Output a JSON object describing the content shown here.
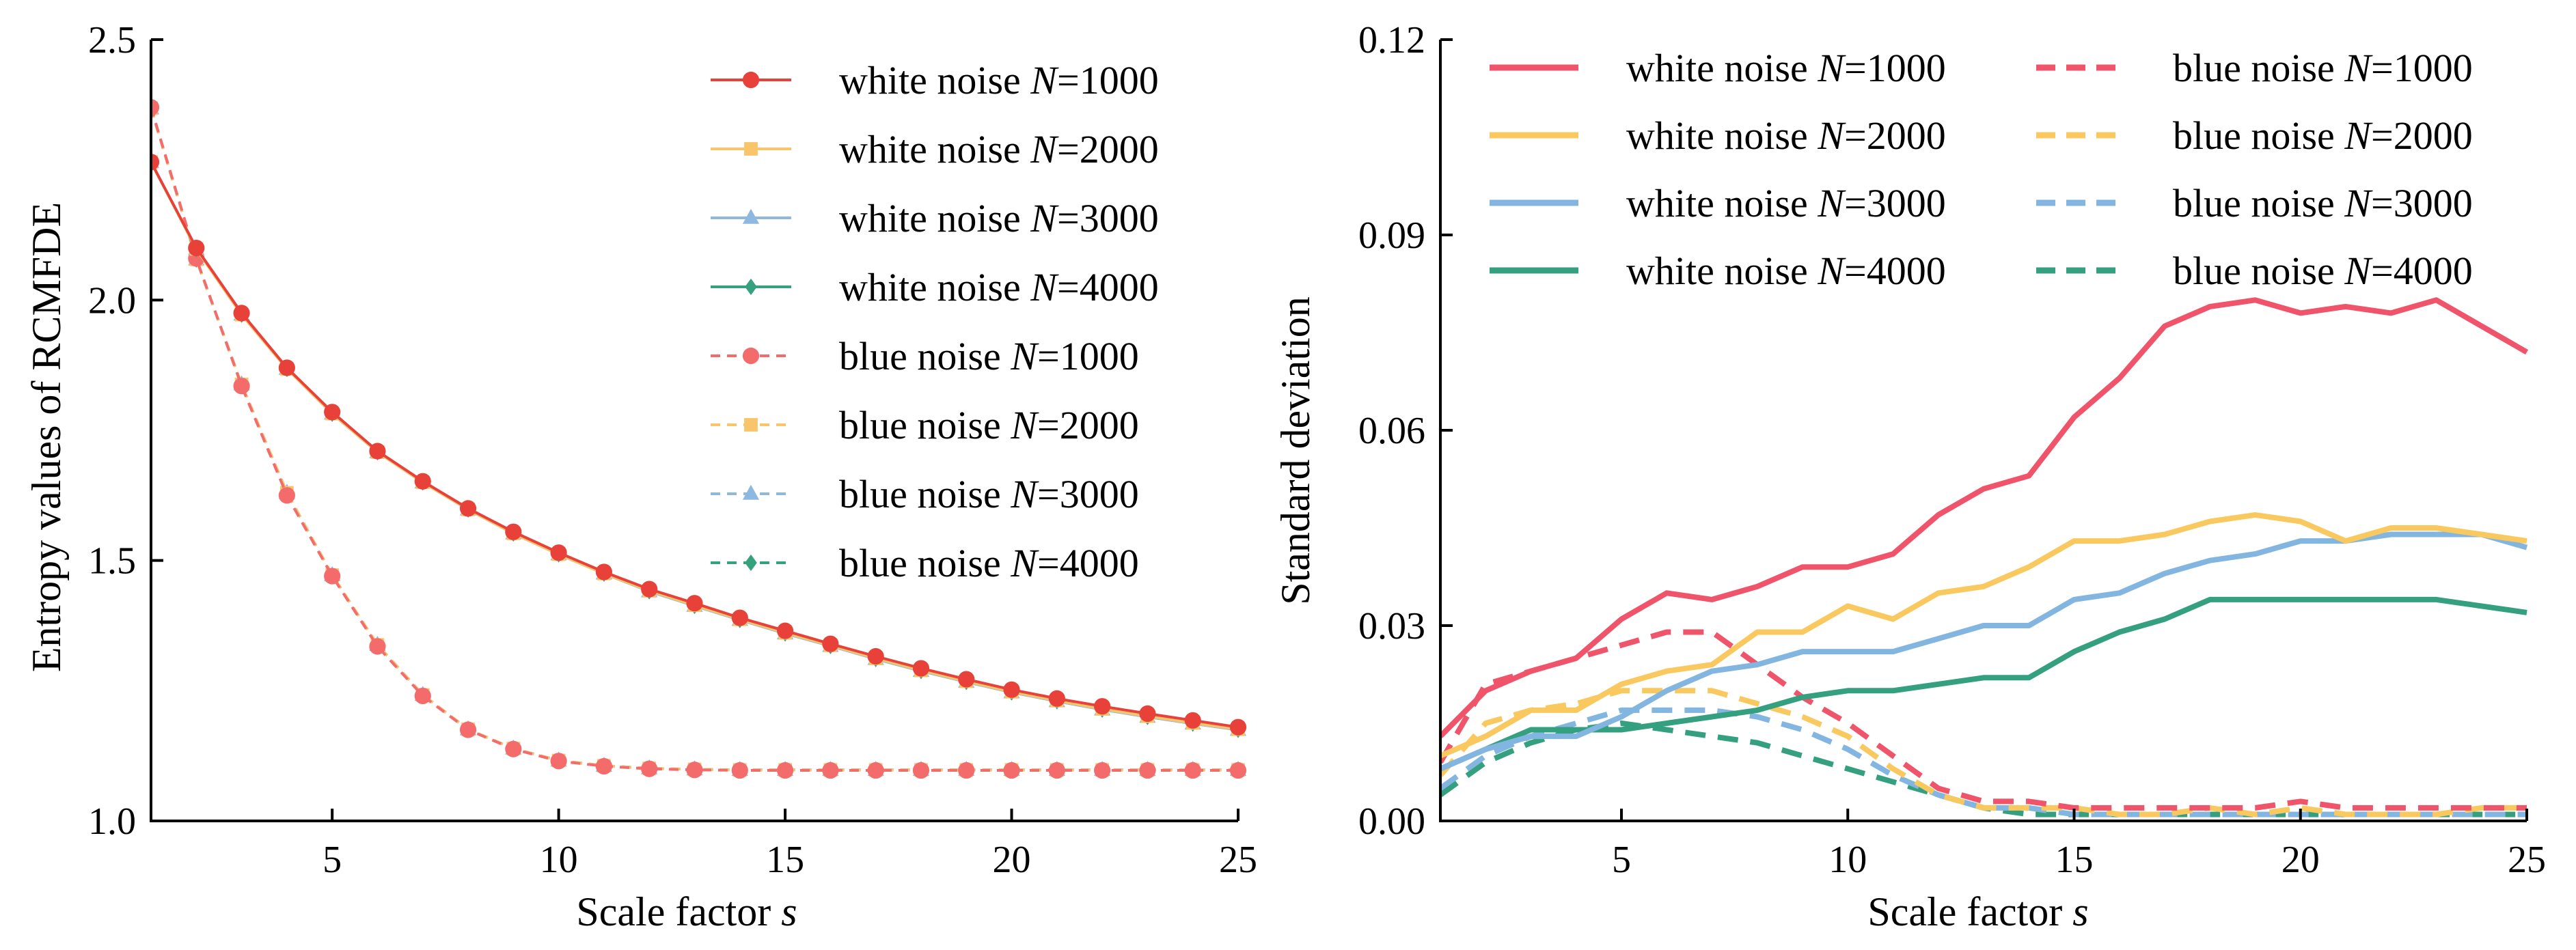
{
  "chart_data": [
    {
      "type": "line",
      "title": "",
      "xlabel": "Scale factor s",
      "xlabel_main": "Scale factor ",
      "xlabel_italic": "s",
      "ylabel": "Entropy values of RCMFDE",
      "xlim": [
        1,
        25
      ],
      "ylim": [
        1.0,
        2.5
      ],
      "xticks": [
        5,
        10,
        15,
        20,
        25
      ],
      "xtick_labels": [
        "5",
        "10",
        "15",
        "20",
        "25"
      ],
      "yticks": [
        1.0,
        1.5,
        2.0,
        2.5
      ],
      "ytick_labels": [
        "1.0",
        "1.5",
        "2.0",
        "2.5"
      ],
      "grid": false,
      "legend_position": "top-right",
      "x": [
        1,
        2,
        3,
        4,
        5,
        6,
        7,
        8,
        9,
        10,
        11,
        12,
        13,
        14,
        15,
        16,
        17,
        18,
        19,
        20,
        21,
        22,
        23,
        24,
        25
      ],
      "series": [
        {
          "name": "white noise N=1000",
          "label_prefix": "white noise ",
          "label_var": "N",
          "label_value": "=1000",
          "color": "#E8413A",
          "linestyle": "solid",
          "marker": "circle",
          "values": [
            2.265,
            2.1,
            1.975,
            1.87,
            1.785,
            1.71,
            1.652,
            1.6,
            1.555,
            1.515,
            1.478,
            1.445,
            1.418,
            1.39,
            1.365,
            1.34,
            1.316,
            1.293,
            1.272,
            1.252,
            1.235,
            1.22,
            1.206,
            1.193,
            1.18
          ]
        },
        {
          "name": "white noise N=2000",
          "label_prefix": "white noise ",
          "label_var": "N",
          "label_value": "=2000",
          "color": "#F9C56A",
          "linestyle": "solid",
          "marker": "square",
          "values": [
            2.265,
            2.098,
            1.972,
            1.868,
            1.782,
            1.708,
            1.65,
            1.598,
            1.552,
            1.512,
            1.475,
            1.442,
            1.414,
            1.387,
            1.361,
            1.337,
            1.312,
            1.289,
            1.268,
            1.248,
            1.231,
            1.215,
            1.201,
            1.188,
            1.176
          ]
        },
        {
          "name": "white noise N=3000",
          "label_prefix": "white noise ",
          "label_var": "N",
          "label_value": "=3000",
          "color": "#8DB8E0",
          "linestyle": "solid",
          "marker": "triangle",
          "values": [
            2.265,
            2.098,
            1.972,
            1.868,
            1.782,
            1.708,
            1.65,
            1.598,
            1.552,
            1.512,
            1.475,
            1.441,
            1.413,
            1.386,
            1.36,
            1.336,
            1.311,
            1.288,
            1.267,
            1.247,
            1.23,
            1.214,
            1.2,
            1.187,
            1.175
          ]
        },
        {
          "name": "white noise N=4000",
          "label_prefix": "white noise ",
          "label_var": "N",
          "label_value": "=4000",
          "color": "#35A27D",
          "linestyle": "solid",
          "marker": "diamond",
          "values": [
            2.265,
            2.098,
            1.972,
            1.868,
            1.782,
            1.708,
            1.65,
            1.598,
            1.552,
            1.512,
            1.475,
            1.441,
            1.413,
            1.386,
            1.36,
            1.336,
            1.311,
            1.288,
            1.267,
            1.247,
            1.23,
            1.214,
            1.2,
            1.187,
            1.175
          ]
        },
        {
          "name": "blue noise N=1000",
          "label_prefix": "blue noise ",
          "label_var": "N",
          "label_value": "=1000",
          "color": "#F46B6B",
          "linestyle": "dashed",
          "marker": "circle",
          "values": [
            2.37,
            2.08,
            1.835,
            1.625,
            1.47,
            1.335,
            1.24,
            1.175,
            1.138,
            1.115,
            1.105,
            1.1,
            1.098,
            1.097,
            1.097,
            1.097,
            1.097,
            1.097,
            1.097,
            1.097,
            1.097,
            1.097,
            1.097,
            1.097,
            1.097
          ]
        },
        {
          "name": "blue noise N=2000",
          "label_prefix": "blue noise ",
          "label_var": "N",
          "label_value": "=2000",
          "color": "#F9C56A",
          "linestyle": "dashed",
          "marker": "square",
          "values": [
            2.368,
            2.078,
            1.838,
            1.63,
            1.472,
            1.338,
            1.242,
            1.176,
            1.139,
            1.116,
            1.106,
            1.101,
            1.099,
            1.098,
            1.098,
            1.098,
            1.098,
            1.098,
            1.098,
            1.098,
            1.098,
            1.098,
            1.098,
            1.098,
            1.098
          ]
        },
        {
          "name": "blue noise N=3000",
          "label_prefix": "blue noise ",
          "label_var": "N",
          "label_value": "=3000",
          "color": "#8DB8E0",
          "linestyle": "dashed",
          "marker": "triangle",
          "values": [
            2.368,
            2.078,
            1.838,
            1.63,
            1.472,
            1.338,
            1.242,
            1.176,
            1.139,
            1.116,
            1.106,
            1.101,
            1.099,
            1.098,
            1.098,
            1.098,
            1.098,
            1.098,
            1.098,
            1.098,
            1.098,
            1.098,
            1.098,
            1.098,
            1.098
          ]
        },
        {
          "name": "blue noise N=4000",
          "label_prefix": "blue noise ",
          "label_var": "N",
          "label_value": "=4000",
          "color": "#35A27D",
          "linestyle": "dashed",
          "marker": "diamond",
          "values": [
            2.368,
            2.078,
            1.838,
            1.63,
            1.472,
            1.338,
            1.242,
            1.176,
            1.139,
            1.116,
            1.106,
            1.101,
            1.099,
            1.098,
            1.098,
            1.098,
            1.098,
            1.098,
            1.098,
            1.098,
            1.098,
            1.098,
            1.098,
            1.098,
            1.098
          ]
        }
      ]
    },
    {
      "type": "line",
      "title": "",
      "xlabel": "Scale factor s",
      "xlabel_main": "Scale factor ",
      "xlabel_italic": "s",
      "ylabel": "Standard deviation",
      "xlim": [
        1,
        25
      ],
      "ylim": [
        0.0,
        0.12
      ],
      "xticks": [
        5,
        10,
        15,
        20,
        25
      ],
      "xtick_labels": [
        "5",
        "10",
        "15",
        "20",
        "25"
      ],
      "yticks": [
        0.0,
        0.03,
        0.06,
        0.09,
        0.12
      ],
      "ytick_labels": [
        "0.00",
        "0.03",
        "0.06",
        "0.09",
        "0.12"
      ],
      "grid": false,
      "legend_position": "top",
      "x": [
        1,
        2,
        3,
        4,
        5,
        6,
        7,
        8,
        9,
        10,
        11,
        12,
        13,
        14,
        15,
        16,
        17,
        18,
        19,
        20,
        21,
        22,
        23,
        24,
        25
      ],
      "series": [
        {
          "name": "white noise N=1000",
          "label_prefix": "white noise ",
          "label_var": "N",
          "label_value": "=1000",
          "color": "#F0546A",
          "linestyle": "solid",
          "values": [
            0.013,
            0.02,
            0.023,
            0.025,
            0.031,
            0.035,
            0.034,
            0.036,
            0.039,
            0.039,
            0.041,
            0.047,
            0.051,
            0.053,
            0.062,
            0.068,
            0.076,
            0.079,
            0.08,
            0.078,
            0.079,
            0.078,
            0.08,
            0.076,
            0.072
          ]
        },
        {
          "name": "white noise N=2000",
          "label_prefix": "white noise ",
          "label_var": "N",
          "label_value": "=2000",
          "color": "#F9C95F",
          "linestyle": "solid",
          "values": [
            0.01,
            0.013,
            0.017,
            0.017,
            0.021,
            0.023,
            0.024,
            0.029,
            0.029,
            0.033,
            0.031,
            0.035,
            0.036,
            0.039,
            0.043,
            0.043,
            0.044,
            0.046,
            0.047,
            0.046,
            0.043,
            0.045,
            0.045,
            0.044,
            0.043
          ]
        },
        {
          "name": "white noise N=3000",
          "label_prefix": "white noise ",
          "label_var": "N",
          "label_value": "=3000",
          "color": "#82B6E0",
          "linestyle": "solid",
          "values": [
            0.008,
            0.011,
            0.013,
            0.013,
            0.016,
            0.02,
            0.023,
            0.024,
            0.026,
            0.026,
            0.026,
            0.028,
            0.03,
            0.03,
            0.034,
            0.035,
            0.038,
            0.04,
            0.041,
            0.043,
            0.043,
            0.044,
            0.044,
            0.044,
            0.042
          ]
        },
        {
          "name": "white noise N=4000",
          "label_prefix": "white noise ",
          "label_var": "N",
          "label_value": "=4000",
          "color": "#34A07F",
          "linestyle": "solid",
          "values": [
            0.008,
            0.011,
            0.014,
            0.014,
            0.014,
            0.015,
            0.016,
            0.017,
            0.019,
            0.02,
            0.02,
            0.021,
            0.022,
            0.022,
            0.026,
            0.029,
            0.031,
            0.034,
            0.034,
            0.034,
            0.034,
            0.034,
            0.034,
            0.033,
            0.032
          ]
        },
        {
          "name": "blue noise N=1000",
          "label_prefix": "blue noise ",
          "label_var": "N",
          "label_value": "=1000",
          "color": "#F0546A",
          "linestyle": "dashed",
          "values": [
            0.009,
            0.021,
            0.023,
            0.025,
            0.027,
            0.029,
            0.029,
            0.024,
            0.019,
            0.015,
            0.01,
            0.005,
            0.003,
            0.003,
            0.002,
            0.002,
            0.002,
            0.002,
            0.002,
            0.003,
            0.002,
            0.002,
            0.002,
            0.002,
            0.002
          ]
        },
        {
          "name": "blue noise N=2000",
          "label_prefix": "blue noise ",
          "label_var": "N",
          "label_value": "=2000",
          "color": "#F9C95F",
          "linestyle": "dashed",
          "values": [
            0.007,
            0.015,
            0.017,
            0.018,
            0.02,
            0.02,
            0.02,
            0.018,
            0.016,
            0.013,
            0.008,
            0.004,
            0.002,
            0.002,
            0.002,
            0.001,
            0.001,
            0.002,
            0.001,
            0.002,
            0.001,
            0.001,
            0.001,
            0.002,
            0.002
          ]
        },
        {
          "name": "blue noise N=3000",
          "label_prefix": "blue noise ",
          "label_var": "N",
          "label_value": "=3000",
          "color": "#82B6E0",
          "linestyle": "dashed",
          "values": [
            0.005,
            0.01,
            0.013,
            0.015,
            0.017,
            0.017,
            0.017,
            0.016,
            0.014,
            0.011,
            0.007,
            0.004,
            0.002,
            0.002,
            0.001,
            0.001,
            0.001,
            0.001,
            0.001,
            0.001,
            0.001,
            0.001,
            0.001,
            0.001,
            0.001
          ]
        },
        {
          "name": "blue noise N=4000",
          "label_prefix": "blue noise ",
          "label_var": "N",
          "label_value": "=4000",
          "color": "#34A07F",
          "linestyle": "dashed",
          "values": [
            0.004,
            0.009,
            0.012,
            0.014,
            0.015,
            0.014,
            0.013,
            0.012,
            0.01,
            0.008,
            0.006,
            0.004,
            0.002,
            0.001,
            0.001,
            0.001,
            0.001,
            0.001,
            0.001,
            0.001,
            0.001,
            0.001,
            0.001,
            0.001,
            0.001
          ]
        }
      ]
    }
  ]
}
